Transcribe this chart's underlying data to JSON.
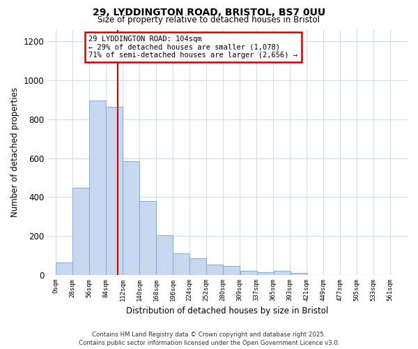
{
  "title_line1": "29, LYDDINGTON ROAD, BRISTOL, BS7 0UU",
  "title_line2": "Size of property relative to detached houses in Bristol",
  "xlabel": "Distribution of detached houses by size in Bristol",
  "ylabel": "Number of detached properties",
  "bar_left_edges": [
    0,
    28,
    56,
    84,
    112,
    140,
    168,
    196,
    224,
    252,
    280,
    309,
    337,
    365,
    393,
    421,
    449,
    477,
    505,
    533
  ],
  "bar_heights": [
    65,
    450,
    895,
    865,
    585,
    380,
    205,
    112,
    88,
    53,
    47,
    22,
    14,
    20,
    12,
    0,
    0,
    0,
    0,
    0
  ],
  "bin_width": 28,
  "bar_color": "#c8d8ee",
  "bar_edge_color": "#8ab0d8",
  "tick_labels": [
    "0sqm",
    "28sqm",
    "56sqm",
    "84sqm",
    "112sqm",
    "140sqm",
    "168sqm",
    "196sqm",
    "224sqm",
    "252sqm",
    "280sqm",
    "309sqm",
    "337sqm",
    "365sqm",
    "393sqm",
    "421sqm",
    "449sqm",
    "477sqm",
    "505sqm",
    "533sqm",
    "561sqm"
  ],
  "vline_x": 104,
  "vline_color": "#cc0000",
  "ylim": [
    0,
    1260
  ],
  "xlim": [
    -14,
    589
  ],
  "annotation_title": "29 LYDDINGTON ROAD: 104sqm",
  "annotation_line2": "← 29% of detached houses are smaller (1,078)",
  "annotation_line3": "71% of semi-detached houses are larger (2,656) →",
  "footer_line1": "Contains HM Land Registry data © Crown copyright and database right 2025.",
  "footer_line2": "Contains public sector information licensed under the Open Government Licence v3.0.",
  "background_color": "#ffffff",
  "grid_color": "#d0dce8"
}
